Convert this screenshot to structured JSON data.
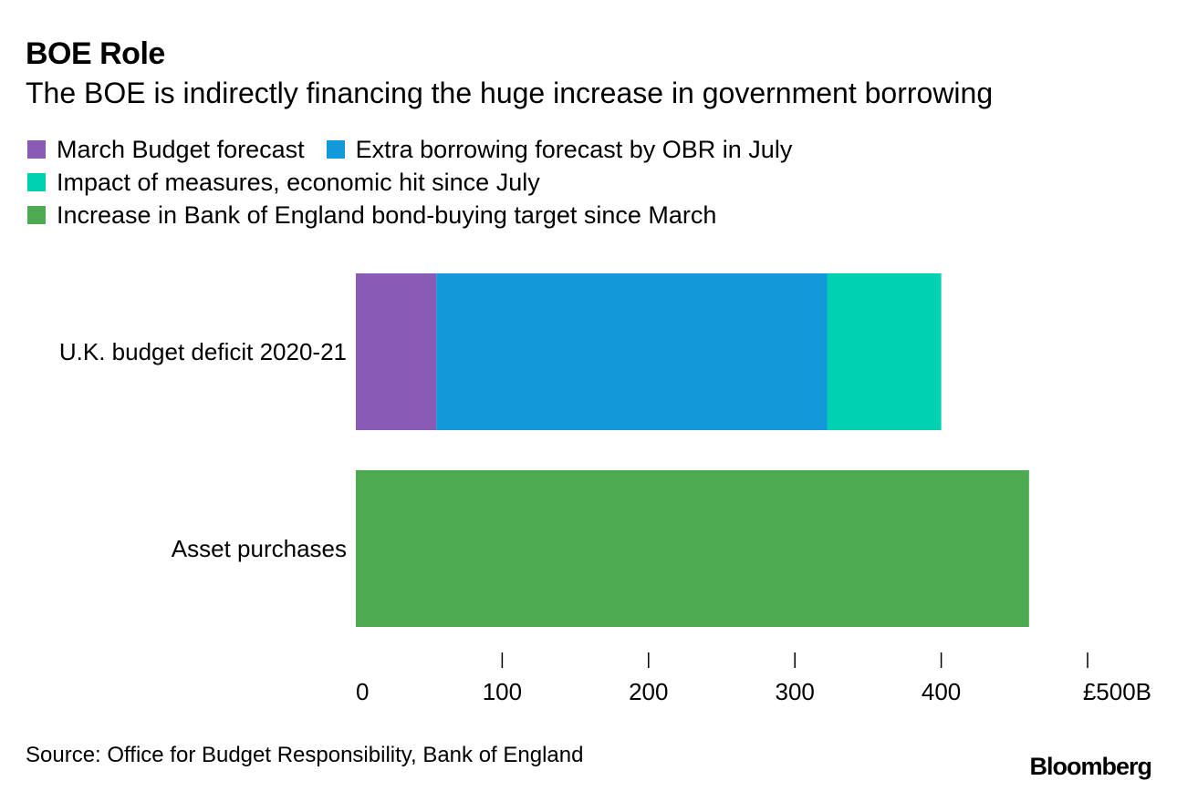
{
  "colors": {
    "march_budget": "#8a5bb5",
    "extra_obr": "#1299da",
    "impact_measures": "#00d1b2",
    "boe_bond_buying": "#4daa50"
  },
  "chart_data": {
    "type": "bar",
    "orientation": "horizontal",
    "stacked": true,
    "title": "BOE Role",
    "subtitle": "The BOE is indirectly financing the huge increase in government borrowing",
    "categories": [
      "U.K. budget deficit 2020-21",
      "Asset purchases"
    ],
    "series": [
      {
        "name": "March Budget forecast",
        "color_key": "march_budget",
        "values": [
          55,
          0
        ]
      },
      {
        "name": "Extra borrowing forecast by OBR in July",
        "color_key": "extra_obr",
        "values": [
          267,
          0
        ]
      },
      {
        "name": "Impact of measures, economic hit since July",
        "color_key": "impact_measures",
        "values": [
          78,
          0
        ]
      },
      {
        "name": "Increase in Bank of England bond-buying target since March",
        "color_key": "boe_bond_buying",
        "values": [
          0,
          460
        ]
      }
    ],
    "xlim": [
      0,
      500
    ],
    "xticks": [
      0,
      100,
      200,
      300,
      400,
      500
    ],
    "xtick_labels": [
      "0",
      "100",
      "200",
      "300",
      "400",
      "£500B"
    ],
    "legend_position": "top-left",
    "grid": false
  },
  "legend": {
    "rows": [
      [
        {
          "label": "March Budget forecast",
          "color_key": "march_budget"
        },
        {
          "label": "Extra borrowing forecast by OBR in July",
          "color_key": "extra_obr"
        }
      ],
      [
        {
          "label": "Impact of measures, economic hit since July",
          "color_key": "impact_measures"
        }
      ],
      [
        {
          "label": "Increase in Bank of England bond-buying target since March",
          "color_key": "boe_bond_buying"
        }
      ]
    ]
  },
  "footer": {
    "source": "Source: Office for Budget Responsibility, Bank of England",
    "brand": "Bloomberg"
  }
}
